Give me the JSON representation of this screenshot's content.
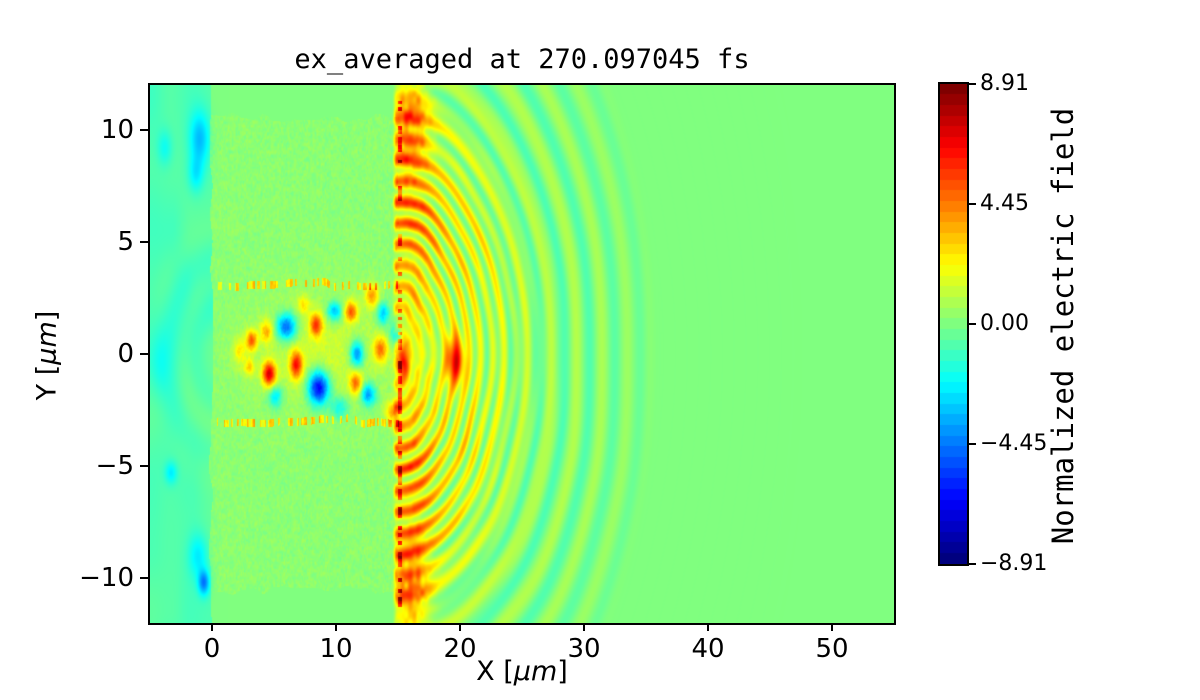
{
  "figure": {
    "title": "ex_averaged at 270.097045 fs",
    "background_color": "#ffffff"
  },
  "axes": {
    "xlabel_prefix": "X [",
    "xlabel_unit": "μm",
    "xlabel_suffix": "]",
    "ylabel_prefix": "Y [",
    "ylabel_unit": "μm",
    "ylabel_suffix": "]"
  },
  "chart_data": {
    "type": "heatmap",
    "title": "ex_averaged at 270.097045 fs",
    "xlabel": "X [μm]",
    "ylabel": "Y [μm]",
    "x_range": [
      -5,
      55
    ],
    "y_range": [
      -12,
      12
    ],
    "x_ticks": [
      {
        "value": 0,
        "label": "0"
      },
      {
        "value": 10,
        "label": "10"
      },
      {
        "value": 20,
        "label": "20"
      },
      {
        "value": 30,
        "label": "30"
      },
      {
        "value": 40,
        "label": "40"
      },
      {
        "value": 50,
        "label": "50"
      }
    ],
    "y_ticks": [
      {
        "value": 10,
        "label": "10"
      },
      {
        "value": 5,
        "label": "5"
      },
      {
        "value": 0,
        "label": "0"
      },
      {
        "value": -5,
        "label": "−5"
      },
      {
        "value": -10,
        "label": "−10"
      }
    ],
    "grid": false,
    "colormap": "jet",
    "colorbar": {
      "label": "Normalized electric field",
      "vmin": -8.91,
      "vmax": 8.91,
      "levels": 45,
      "ticks": [
        {
          "value": 8.91,
          "label": "8.91"
        },
        {
          "value": 4.45,
          "label": "4.45"
        },
        {
          "value": 0,
          "label": "0.00"
        },
        {
          "value": -4.45,
          "label": "−4.45"
        },
        {
          "value": -8.91,
          "label": "−8.91"
        }
      ]
    },
    "description": "2D map of the normalized electric field ex_averaged from a laser-plasma simulation at t = 270.097045 fs. Uniform green background (field ~0). A cyan negative wash with cyan patches fills x < 0. A speckled green plasma-channel block spans 0 < x < 15 um, |y| < 10.5 um with dotted orange boundary lines at y = +/-3 um. An intense laser pulse of alternating red/blue lobes sits on axis between x = 2 and 16 um (|y| < 3 um). A bright orange bow-shaped wavefront burst starts at x = 15 um, with concentric yellow/orange arcs centered near (14.7, 0) sweeping out to x = 27 um, strongest toward the top and bottom edges, followed by fading yellow-green curved ripple striations that vanish near x = 36 um.",
    "field_model": {
      "left": {
        "wash": -0.85,
        "edge_x": -0.05,
        "blobs": [
          [
            -1.0,
            9.6,
            0.8,
            1.2,
            -2.6
          ],
          [
            -1.3,
            8.0,
            0.6,
            0.8,
            -1.6
          ],
          [
            -1.1,
            -9.0,
            0.8,
            1.0,
            -1.8
          ],
          [
            -0.65,
            -10.2,
            0.45,
            0.55,
            -3.6
          ],
          [
            -3.3,
            -5.3,
            0.5,
            0.5,
            -1.7
          ],
          [
            -3.8,
            9.2,
            0.6,
            0.8,
            -1.3
          ],
          [
            -2.6,
            1.6,
            1.4,
            2.4,
            -0.6
          ],
          [
            -4.2,
            -0.5,
            0.8,
            1.5,
            -0.8
          ]
        ]
      },
      "channel": {
        "x_max": 15.05,
        "y_half": 10.55,
        "base": 0.22,
        "speckle": 0.55,
        "line_y": 3.05,
        "line_amp": 2.6,
        "halo": [
          9.0,
          5.5,
          2.4,
          1.15
        ]
      },
      "core_blobs": [
        [
          2.2,
          0.1,
          0.5,
          0.6,
          2.0
        ],
        [
          3.2,
          0.6,
          0.45,
          0.45,
          4.5
        ],
        [
          3.0,
          -0.6,
          0.4,
          0.4,
          2.5
        ],
        [
          4.6,
          -0.9,
          0.55,
          0.55,
          6.5
        ],
        [
          4.4,
          1.0,
          0.5,
          0.5,
          3.0
        ],
        [
          6.0,
          1.2,
          0.8,
          0.6,
          -5.5
        ],
        [
          5.1,
          -1.9,
          0.6,
          0.5,
          -3.0
        ],
        [
          6.8,
          -0.5,
          0.5,
          0.6,
          5.5
        ],
        [
          7.4,
          2.2,
          0.5,
          0.4,
          2.0
        ],
        [
          8.6,
          -1.5,
          0.85,
          0.75,
          -7.5
        ],
        [
          8.4,
          1.3,
          0.5,
          0.5,
          5.0
        ],
        [
          9.9,
          1.9,
          0.6,
          0.45,
          -4.0
        ],
        [
          10.3,
          -2.4,
          0.7,
          0.5,
          -2.5
        ],
        [
          11.2,
          1.9,
          0.5,
          0.45,
          4.5
        ],
        [
          11.7,
          0.0,
          0.55,
          0.6,
          -5.0
        ],
        [
          11.6,
          -1.3,
          0.5,
          0.5,
          4.0
        ],
        [
          12.6,
          -1.8,
          0.6,
          0.5,
          -4.5
        ],
        [
          12.9,
          2.6,
          0.55,
          0.5,
          3.5
        ],
        [
          13.6,
          0.2,
          0.55,
          0.55,
          4.0
        ],
        [
          13.8,
          1.8,
          0.5,
          0.5,
          -3.5
        ],
        [
          14.6,
          -2.6,
          0.6,
          0.5,
          3.5
        ],
        [
          14.9,
          0.9,
          0.55,
          0.5,
          -3.0
        ],
        [
          15.4,
          -0.3,
          0.5,
          0.9,
          5.0
        ],
        [
          19.6,
          -0.3,
          0.8,
          1.1,
          6.0
        ]
      ],
      "burst": {
        "cx": 14.7,
        "arc_amp": 4.2,
        "arc_r0": 6.0,
        "arc_sigma": 4.6,
        "arc_period": 0.95,
        "angle_floor": 0.45,
        "wall_x": 16.0,
        "wall_sigma": 1.6,
        "wall_amp": 1.15,
        "wall_edge_amp": 2.4,
        "wall_edge_y": 10.2,
        "ripple_amp": 0.9,
        "ripple_period": 2.05,
        "ripple_r0": 14.0,
        "ripple_sigma": 6.5,
        "ripple_rmax": 21.5
      }
    }
  }
}
